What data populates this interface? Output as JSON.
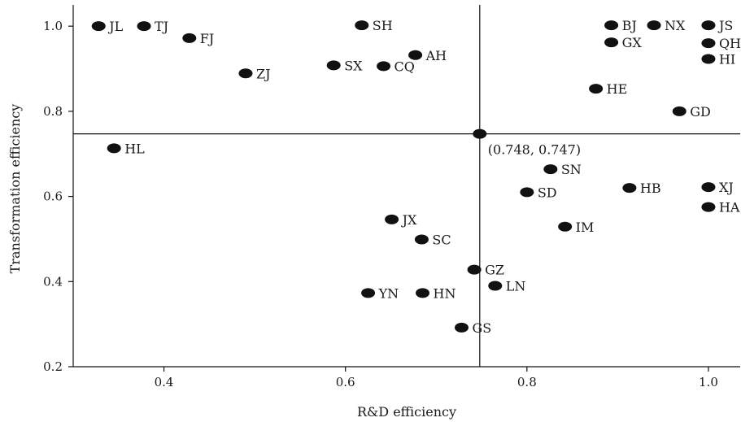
{
  "chart_data": {
    "type": "scatter",
    "xlabel": "R&D efficiency",
    "ylabel": "Transformation efficiency",
    "xlim": [
      0.3,
      1.035
    ],
    "ylim": [
      0.2,
      1.05
    ],
    "xticks": [
      0.4,
      0.6,
      0.8,
      1.0
    ],
    "yticks": [
      0.2,
      0.4,
      0.6,
      0.8,
      1.0
    ],
    "xtick_labels": [
      "0.4",
      "0.6",
      "0.8",
      "1.0"
    ],
    "ytick_labels": [
      "0.2",
      "0.4",
      "0.6",
      "0.8",
      "1.0"
    ],
    "grid": false,
    "reference_lines": {
      "x": 0.748,
      "y": 0.747
    },
    "reference_point": {
      "x": 0.748,
      "y": 0.747,
      "label": "(0.748, 0.747)"
    },
    "points": [
      {
        "label": "JL",
        "x": 0.328,
        "y": 1.0
      },
      {
        "label": "TJ",
        "x": 0.378,
        "y": 1.0
      },
      {
        "label": "FJ",
        "x": 0.428,
        "y": 0.972
      },
      {
        "label": "ZJ",
        "x": 0.49,
        "y": 0.889
      },
      {
        "label": "SX",
        "x": 0.587,
        "y": 0.908
      },
      {
        "label": "SH",
        "x": 0.618,
        "y": 1.002
      },
      {
        "label": "CQ",
        "x": 0.642,
        "y": 0.906
      },
      {
        "label": "AH",
        "x": 0.677,
        "y": 0.932
      },
      {
        "label": "BJ",
        "x": 0.893,
        "y": 1.002
      },
      {
        "label": "NX",
        "x": 0.94,
        "y": 1.002
      },
      {
        "label": "JS",
        "x": 1.0,
        "y": 1.002
      },
      {
        "label": "GX",
        "x": 0.893,
        "y": 0.962
      },
      {
        "label": "QH",
        "x": 1.0,
        "y": 0.96
      },
      {
        "label": "HI",
        "x": 1.0,
        "y": 0.923
      },
      {
        "label": "HE",
        "x": 0.876,
        "y": 0.853
      },
      {
        "label": "GD",
        "x": 0.968,
        "y": 0.8
      },
      {
        "label": "HL",
        "x": 0.345,
        "y": 0.713
      },
      {
        "label": "SN",
        "x": 0.826,
        "y": 0.664
      },
      {
        "label": "SD",
        "x": 0.8,
        "y": 0.61
      },
      {
        "label": "HB",
        "x": 0.913,
        "y": 0.62
      },
      {
        "label": "XJ",
        "x": 1.0,
        "y": 0.622
      },
      {
        "label": "HA",
        "x": 1.0,
        "y": 0.575
      },
      {
        "label": "JX",
        "x": 0.651,
        "y": 0.546
      },
      {
        "label": "SC",
        "x": 0.684,
        "y": 0.499
      },
      {
        "label": "IM",
        "x": 0.842,
        "y": 0.529
      },
      {
        "label": "GZ",
        "x": 0.742,
        "y": 0.428
      },
      {
        "label": "LN",
        "x": 0.765,
        "y": 0.39
      },
      {
        "label": "YN",
        "x": 0.625,
        "y": 0.373
      },
      {
        "label": "HN",
        "x": 0.685,
        "y": 0.373
      },
      {
        "label": "GS",
        "x": 0.728,
        "y": 0.292
      }
    ],
    "marker_color": "#111111",
    "line_color": "#111111"
  }
}
